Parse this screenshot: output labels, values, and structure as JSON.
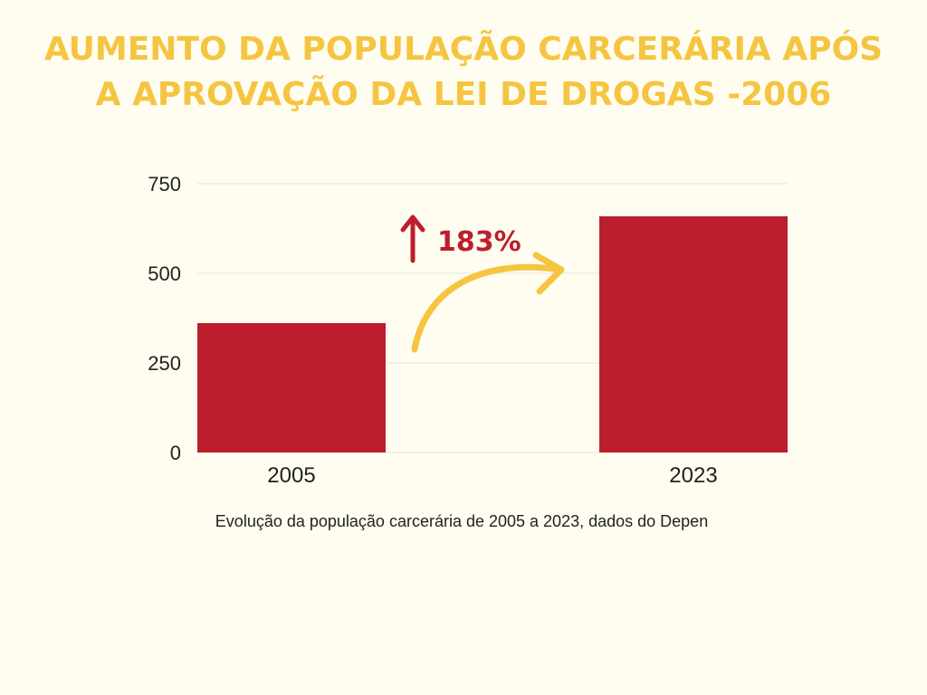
{
  "chart_data": {
    "type": "bar",
    "title": [
      "AUMENTO DA POPULAÇÃO CARCERÁRIA APÓS",
      "A APROVAÇÃO DA LEI DE DROGAS -2006"
    ],
    "categories": [
      "2005",
      "2023"
    ],
    "values": [
      361,
      659
    ],
    "color": "#bc1e2d",
    "ylim": [
      0,
      750
    ],
    "yticks": [
      0,
      250,
      500,
      750
    ],
    "grid": true,
    "annotation": "183%",
    "caption": "Evolução da população carcerária de 2005 a 2023, dados do Depen"
  }
}
